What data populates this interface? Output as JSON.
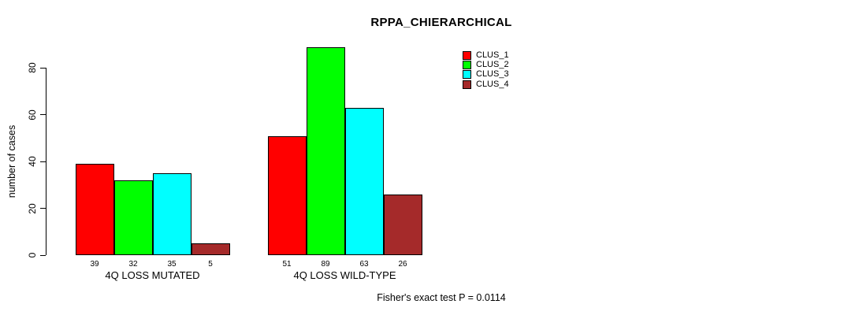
{
  "title": "RPPA_CHIERARCHICAL",
  "footer": {
    "note": "Fisher's exact test P = 0.0114"
  },
  "chart_data": {
    "type": "bar",
    "title": "RPPA_CHIERARCHICAL",
    "categories": [
      "4Q LOSS MUTATED",
      "4Q LOSS WILD-TYPE"
    ],
    "series": [
      {
        "name": "CLUS_1",
        "color": "#ff0000",
        "values": [
          39,
          51
        ]
      },
      {
        "name": "CLUS_2",
        "color": "#00ff00",
        "values": [
          32,
          89
        ]
      },
      {
        "name": "CLUS_3",
        "color": "#00ffff",
        "values": [
          35,
          63
        ]
      },
      {
        "name": "CLUS_4",
        "color": "#a52a2a",
        "values": [
          5,
          26
        ]
      }
    ],
    "xlabel": "",
    "ylabel": "number of cases",
    "yticks": [
      0,
      20,
      40,
      60,
      80
    ],
    "ylim": [
      0,
      89
    ],
    "bar_value_labels": [
      [
        39,
        32,
        35,
        5
      ],
      [
        51,
        89,
        63,
        26
      ]
    ],
    "grid": false,
    "legend_position": "top-right",
    "annotation": "Fisher's exact test P = 0.0114"
  }
}
